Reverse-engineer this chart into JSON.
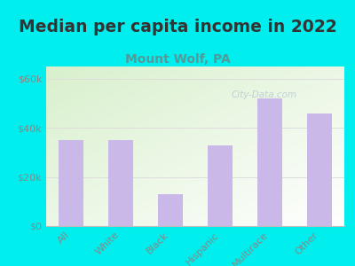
{
  "title": "Median per capita income in 2022",
  "subtitle": "Mount Wolf, PA",
  "categories": [
    "All",
    "White",
    "Black",
    "Hispanic",
    "Multirace",
    "Other"
  ],
  "values": [
    35000,
    35200,
    13000,
    33000,
    52000,
    46000
  ],
  "bar_color": "#c9b8e8",
  "title_fontsize": 13.5,
  "subtitle_fontsize": 10,
  "subtitle_color": "#559999",
  "title_color": "#333333",
  "background_color": "#00eeee",
  "plot_bg_topleft": "#d8f0cc",
  "plot_bg_bottomright": "#ffffff",
  "tick_color": "#888888",
  "ylim": [
    0,
    65000
  ],
  "yticks": [
    0,
    20000,
    40000,
    60000
  ],
  "ytick_labels": [
    "$0",
    "$20k",
    "$40k",
    "$60k"
  ],
  "watermark": "City-Data.com",
  "grid_color": "#dddddd"
}
